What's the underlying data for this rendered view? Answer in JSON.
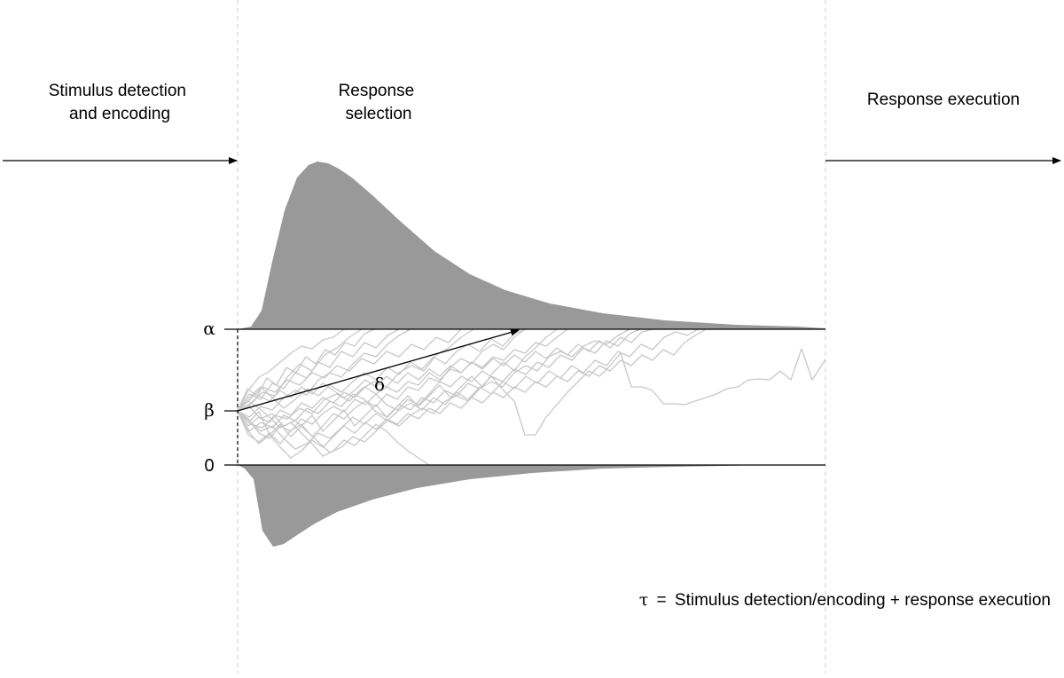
{
  "stages": {
    "encoding": [
      "Stimulus detection",
      "and encoding"
    ],
    "selection": [
      "Response",
      "selection"
    ],
    "execution": "Response execution"
  },
  "params": {
    "alpha": "α",
    "beta": "β",
    "zero": "0",
    "delta": "δ"
  },
  "footnote": {
    "tau": "τ",
    "equals": "=",
    "formula": "Stimulus detection/encoding + response execution"
  },
  "colors": {
    "density_fill": "#999999",
    "path_stroke": "#c8c8c8",
    "stage_divider": "#cccccc"
  }
}
